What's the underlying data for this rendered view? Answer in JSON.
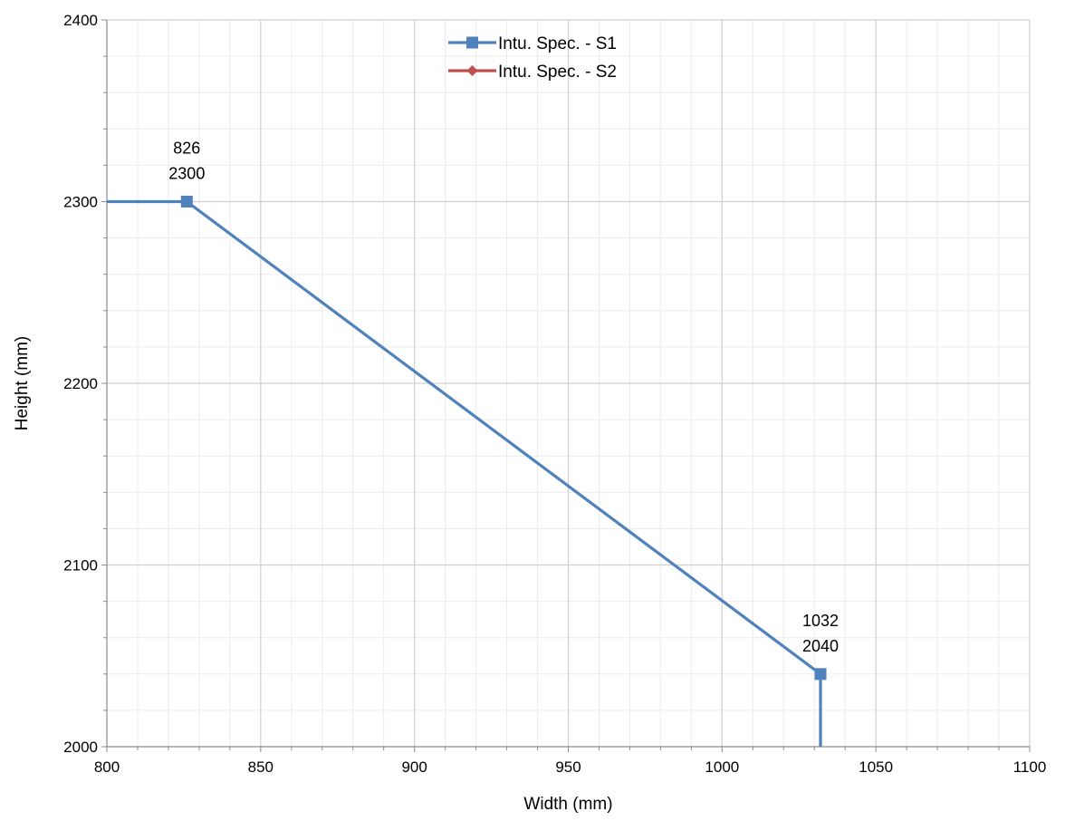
{
  "chart_data": {
    "type": "line",
    "title": "",
    "xlabel": "Width (mm)",
    "ylabel": "Height (mm)",
    "xlim": [
      800,
      1100
    ],
    "ylim": [
      2000,
      2400
    ],
    "x_major_step": 50,
    "x_minor_step": 10,
    "y_major_step": 100,
    "y_minor_step": 20,
    "grid": true,
    "legend_position": "top-center",
    "series": [
      {
        "name": "Intu. Spec. - S1",
        "color": "#4F81BD",
        "marker": "square",
        "points": [
          [
            800,
            2300
          ],
          [
            826,
            2300
          ],
          [
            1032,
            2040
          ],
          [
            1032,
            2000
          ]
        ],
        "marked_points": [
          [
            826,
            2300
          ],
          [
            1032,
            2040
          ]
        ]
      },
      {
        "name": "Intu. Spec. - S2",
        "color": "#C0504D",
        "marker": "diamond",
        "points": [],
        "marked_points": []
      }
    ],
    "data_labels": [
      {
        "x": 826,
        "y": 2300,
        "line1": "826",
        "line2": "2300"
      },
      {
        "x": 1032,
        "y": 2040,
        "line1": "1032",
        "line2": "2040"
      }
    ]
  }
}
